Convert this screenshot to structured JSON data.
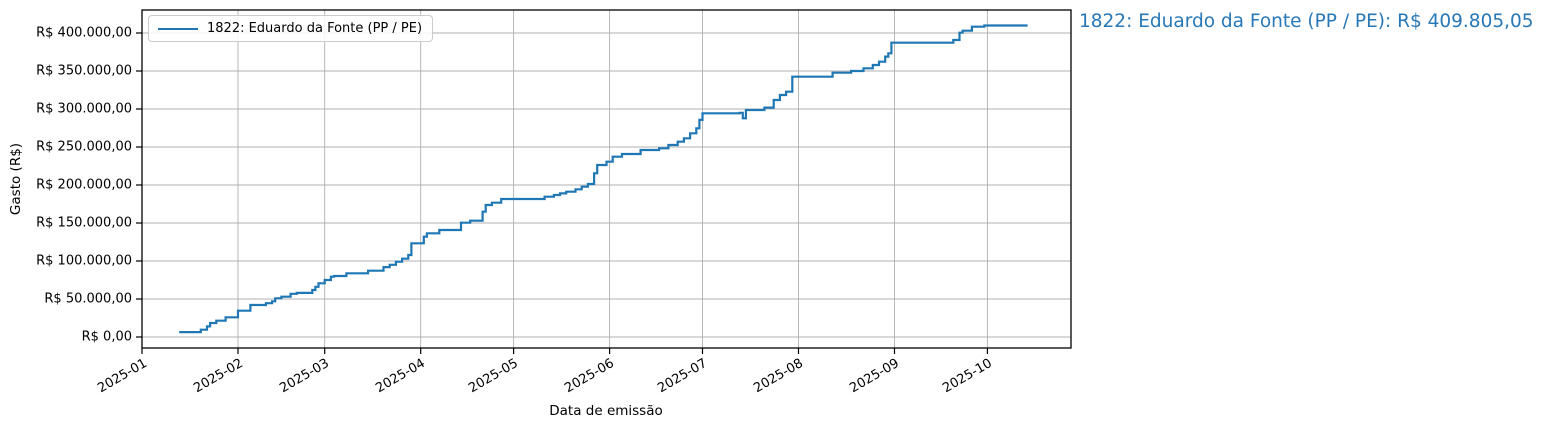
{
  "chart_data": {
    "type": "line",
    "subtype": "cumulative-step",
    "title": "",
    "xlabel": "Data de emissão",
    "ylabel": "Gasto (R$)",
    "legend": {
      "position": "upper-left",
      "entries": [
        "1822: Eduardo da Fonte (PP / PE)"
      ]
    },
    "grid": true,
    "line_color": "#1f77b4",
    "grid_color": "#b0b0b0",
    "x_ticks": [
      "2025-01",
      "2025-02",
      "2025-03",
      "2025-04",
      "2025-05",
      "2025-06",
      "2025-07",
      "2025-08",
      "2025-09",
      "2025-10"
    ],
    "y_ticks": {
      "values": [
        0,
        50000,
        100000,
        150000,
        200000,
        250000,
        300000,
        350000,
        400000
      ],
      "labels": [
        "R$ 0,00",
        "R$ 50.000,00",
        "R$ 100.000,00",
        "R$ 150.000,00",
        "R$ 200.000,00",
        "R$ 250.000,00",
        "R$ 300.000,00",
        "R$ 350.000,00",
        "R$ 400.000,00"
      ]
    },
    "xlim": [
      "2025-01-01",
      "2025-10-28"
    ],
    "ylim": [
      -14500,
      430000
    ],
    "final_total_label": "R$ 409.805,05",
    "series": [
      {
        "name": "1822: Eduardo da Fonte (PP / PE)",
        "points": [
          [
            "2025-01-13",
            6500
          ],
          [
            "2025-01-20",
            9600
          ],
          [
            "2025-01-22",
            14000
          ],
          [
            "2025-01-23",
            18400
          ],
          [
            "2025-01-25",
            21400
          ],
          [
            "2025-01-28",
            25900
          ],
          [
            "2025-02-01",
            34600
          ],
          [
            "2025-02-05",
            42100
          ],
          [
            "2025-02-10",
            44500
          ],
          [
            "2025-02-12",
            47000
          ],
          [
            "2025-02-13",
            50900
          ],
          [
            "2025-02-15",
            53000
          ],
          [
            "2025-02-18",
            56900
          ],
          [
            "2025-02-20",
            58000
          ],
          [
            "2025-02-25",
            61800
          ],
          [
            "2025-02-26",
            66000
          ],
          [
            "2025-02-27",
            70600
          ],
          [
            "2025-03-01",
            75000
          ],
          [
            "2025-03-03",
            79400
          ],
          [
            "2025-03-04",
            80300
          ],
          [
            "2025-03-08",
            83800
          ],
          [
            "2025-03-15",
            87200
          ],
          [
            "2025-03-20",
            92000
          ],
          [
            "2025-03-22",
            95000
          ],
          [
            "2025-03-24",
            99100
          ],
          [
            "2025-03-26",
            103000
          ],
          [
            "2025-03-28",
            107900
          ],
          [
            "2025-03-29",
            123300
          ],
          [
            "2025-04-02",
            132000
          ],
          [
            "2025-04-03",
            136400
          ],
          [
            "2025-04-07",
            140800
          ],
          [
            "2025-04-14",
            150400
          ],
          [
            "2025-04-17",
            153000
          ],
          [
            "2025-04-21",
            164900
          ],
          [
            "2025-04-22",
            173700
          ],
          [
            "2025-04-24",
            176700
          ],
          [
            "2025-04-27",
            181600
          ],
          [
            "2025-05-11",
            184600
          ],
          [
            "2025-05-14",
            186800
          ],
          [
            "2025-05-16",
            189000
          ],
          [
            "2025-05-18",
            191200
          ],
          [
            "2025-05-21",
            194300
          ],
          [
            "2025-05-23",
            197800
          ],
          [
            "2025-05-25",
            201300
          ],
          [
            "2025-05-27",
            215400
          ],
          [
            "2025-05-28",
            226300
          ],
          [
            "2025-05-31",
            230700
          ],
          [
            "2025-06-02",
            237300
          ],
          [
            "2025-06-05",
            240800
          ],
          [
            "2025-06-11",
            246100
          ],
          [
            "2025-06-17",
            248300
          ],
          [
            "2025-06-20",
            252600
          ],
          [
            "2025-06-23",
            257000
          ],
          [
            "2025-06-25",
            261400
          ],
          [
            "2025-06-27",
            268000
          ],
          [
            "2025-06-29",
            274600
          ],
          [
            "2025-06-30",
            285600
          ],
          [
            "2025-07-01",
            294300
          ],
          [
            "2025-07-13",
            295000
          ],
          [
            "2025-07-14",
            287700
          ],
          [
            "2025-07-15",
            298700
          ],
          [
            "2025-07-21",
            301800
          ],
          [
            "2025-07-24",
            311800
          ],
          [
            "2025-07-26",
            318400
          ],
          [
            "2025-07-28",
            322800
          ],
          [
            "2025-07-30",
            342500
          ],
          [
            "2025-08-12",
            347800
          ],
          [
            "2025-08-18",
            350000
          ],
          [
            "2025-08-22",
            353500
          ],
          [
            "2025-08-25",
            357900
          ],
          [
            "2025-08-27",
            362300
          ],
          [
            "2025-08-29",
            368900
          ],
          [
            "2025-08-30",
            373300
          ],
          [
            "2025-08-31",
            387300
          ],
          [
            "2025-09-20",
            390800
          ],
          [
            "2025-09-22",
            400400
          ],
          [
            "2025-09-23",
            403000
          ],
          [
            "2025-09-26",
            408300
          ],
          [
            "2025-09-30",
            409805.05
          ],
          [
            "2025-10-14",
            409805.05
          ]
        ]
      }
    ],
    "annotation": "1822: Eduardo da Fonte (PP / PE): R$ 409.805,05",
    "annotation_color": "#2878b8"
  }
}
